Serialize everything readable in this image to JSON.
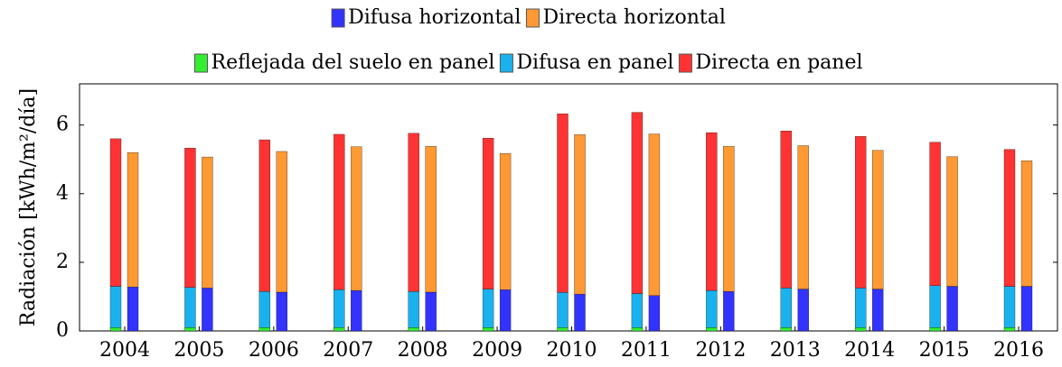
{
  "chart_data": {
    "type": "stacked-bar",
    "ylabel": "Radiación [kWh/m²/día]",
    "categories": [
      "2004",
      "2005",
      "2006",
      "2007",
      "2008",
      "2009",
      "2010",
      "2011",
      "2012",
      "2013",
      "2014",
      "2015",
      "2016"
    ],
    "ylim": [
      0,
      7.2
    ],
    "yticks": [
      0,
      2,
      4,
      6
    ],
    "series": [
      {
        "name": "Difusa horizontal",
        "color": "#3333ff",
        "stack": "right",
        "values": [
          1.28,
          1.25,
          1.13,
          1.18,
          1.13,
          1.2,
          1.07,
          1.03,
          1.15,
          1.22,
          1.22,
          1.3,
          1.3
        ]
      },
      {
        "name": "Directa horizontal",
        "color": "#ff9933",
        "stack": "right",
        "values": [
          3.92,
          3.82,
          4.1,
          4.19,
          4.25,
          3.97,
          4.65,
          4.71,
          4.23,
          4.18,
          4.04,
          3.78,
          3.66
        ]
      },
      {
        "name": "Reflejada del suelo en panel",
        "color": "#33ee33",
        "stack": "left",
        "values": [
          0.1,
          0.1,
          0.1,
          0.1,
          0.1,
          0.1,
          0.1,
          0.1,
          0.1,
          0.1,
          0.1,
          0.1,
          0.1
        ]
      },
      {
        "name": "Difusa en panel",
        "color": "#1ab2ee",
        "stack": "left",
        "values": [
          1.2,
          1.17,
          1.05,
          1.1,
          1.05,
          1.12,
          1.02,
          0.99,
          1.08,
          1.15,
          1.15,
          1.22,
          1.2
        ]
      },
      {
        "name": "Directa en panel",
        "color": "#ff3333",
        "stack": "left",
        "values": [
          4.3,
          4.06,
          4.42,
          4.53,
          4.61,
          4.4,
          5.21,
          5.28,
          4.6,
          4.58,
          4.42,
          4.18,
          3.99
        ]
      }
    ]
  }
}
